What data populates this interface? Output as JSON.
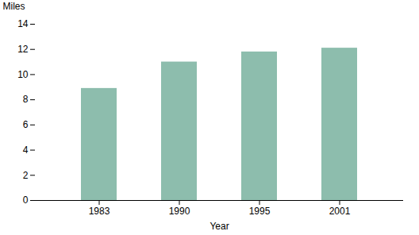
{
  "chart_data": {
    "type": "bar",
    "categories": [
      "1983",
      "1990",
      "1995",
      "2001"
    ],
    "values": [
      8.9,
      11.0,
      11.8,
      12.1
    ],
    "color": "#8dbdad",
    "xlabel": "Year",
    "ylabel": "Miles",
    "ylim": [
      0,
      14
    ],
    "yticks": [
      0,
      2,
      4,
      6,
      8,
      10,
      12,
      14
    ],
    "grid": false
  }
}
